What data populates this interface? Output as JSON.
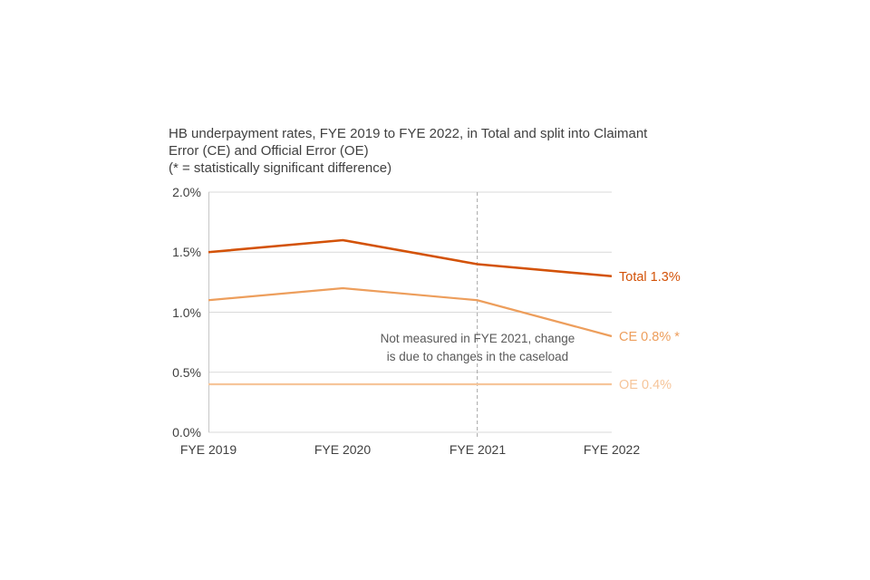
{
  "title": {
    "lines": [
      "HB underpayment rates, FYE 2019 to FYE 2022, in Total and split into Claimant",
      "Error (CE) and Official Error (OE)",
      "(* = statistically significant difference)"
    ]
  },
  "chart_data": {
    "type": "line",
    "categories": [
      "FYE 2019",
      "FYE 2020",
      "FYE 2021",
      "FYE 2022"
    ],
    "series": [
      {
        "name": "Total",
        "values": [
          1.5,
          1.6,
          1.4,
          1.3
        ],
        "color": "#d35208",
        "label": "Total 1.3%"
      },
      {
        "name": "CE",
        "values": [
          1.1,
          1.2,
          1.1,
          0.8
        ],
        "color": "#ed9e5c",
        "label": "CE 0.8% *"
      },
      {
        "name": "OE",
        "values": [
          0.4,
          0.4,
          0.4,
          0.4
        ],
        "color": "#f6c59a",
        "label": "OE 0.4%"
      }
    ],
    "ylim": [
      0,
      2.0
    ],
    "ytick_values": [
      0,
      0.5,
      1.0,
      1.5,
      2.0
    ],
    "yticks": [
      "0.0%",
      "0.5%",
      "1.0%",
      "1.5%",
      "2.0%"
    ],
    "grid": true,
    "dashed_line_at": "FYE 2021",
    "annotation": {
      "lines": [
        "Not measured in FYE 2021, change",
        "is due to changes in the caseload"
      ],
      "at_category": "FYE 2021"
    },
    "legend_position": "right-of-line-ends",
    "colors": {
      "grid": "#d9d9d9",
      "axis": "#c6c6c6",
      "dashed": "#a6a6a6",
      "text": "#404040",
      "annotation_text": "#595959"
    }
  }
}
